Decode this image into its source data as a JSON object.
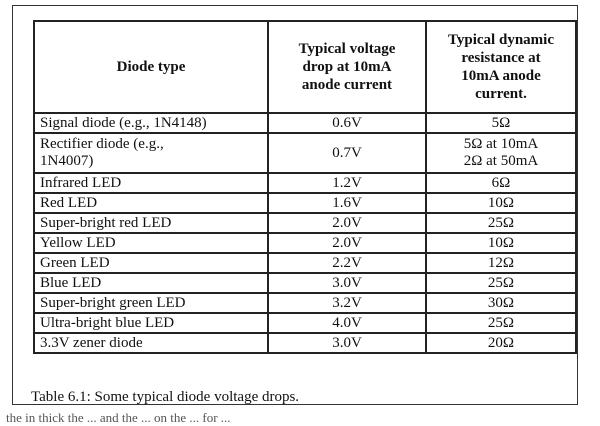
{
  "table": {
    "headers": [
      {
        "lines": [
          "Diode type"
        ]
      },
      {
        "lines": [
          "Typical voltage",
          "drop at 10mA",
          "anode current"
        ]
      },
      {
        "lines": [
          "Typical dynamic",
          "resistance at",
          "10mA anode",
          "current."
        ]
      }
    ],
    "rows": [
      {
        "type": [
          "Signal diode (e.g., 1N4148)"
        ],
        "voltage": "0.6V",
        "resistance": [
          "5Ω"
        ]
      },
      {
        "type": [
          "Rectifier diode  (e.g.,",
          "1N4007)"
        ],
        "voltage": "0.7V",
        "resistance": [
          "5Ω at 10mA",
          "2Ω at 50mA"
        ]
      },
      {
        "type": [
          "Infrared LED"
        ],
        "voltage": "1.2V",
        "resistance": [
          "6Ω"
        ]
      },
      {
        "type": [
          "Red LED"
        ],
        "voltage": "1.6V",
        "resistance": [
          "10Ω"
        ]
      },
      {
        "type": [
          "Super-bright red LED"
        ],
        "voltage": "2.0V",
        "resistance": [
          "25Ω"
        ]
      },
      {
        "type": [
          "Yellow LED"
        ],
        "voltage": "2.0V",
        "resistance": [
          "10Ω"
        ]
      },
      {
        "type": [
          "Green LED"
        ],
        "voltage": "2.2V",
        "resistance": [
          "12Ω"
        ]
      },
      {
        "type": [
          "Blue LED"
        ],
        "voltage": "3.0V",
        "resistance": [
          "25Ω"
        ]
      },
      {
        "type": [
          "Super-bright green LED"
        ],
        "voltage": "3.2V",
        "resistance": [
          "30Ω"
        ]
      },
      {
        "type": [
          "Ultra-bright blue LED"
        ],
        "voltage": "4.0V",
        "resistance": [
          "25Ω"
        ]
      },
      {
        "type": [
          "3.3V zener diode"
        ],
        "voltage": "3.0V",
        "resistance": [
          "20Ω"
        ]
      }
    ]
  },
  "caption": "Table 6.1: Some typical diode voltage drops.",
  "below_text": "the in thick the ... and the ... on the ... for ..."
}
